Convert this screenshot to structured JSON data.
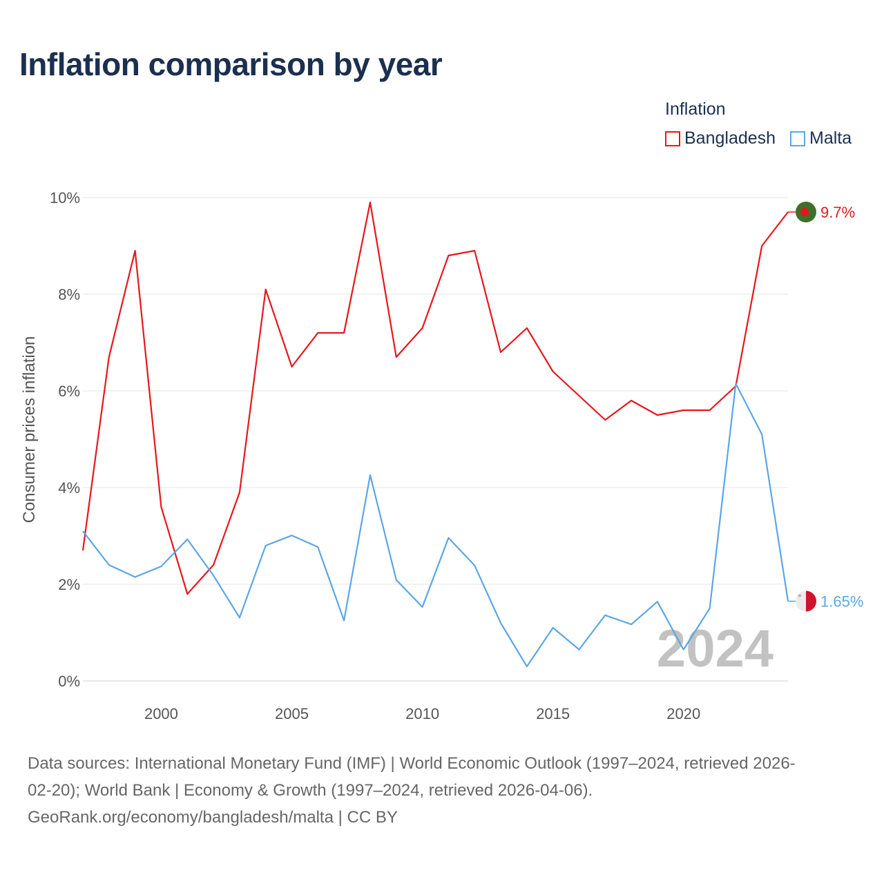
{
  "title": "Inflation comparison by year",
  "legend": {
    "title": "Inflation",
    "items": [
      {
        "name": "Bangladesh",
        "color": "#e8151b"
      },
      {
        "name": "Malta",
        "color": "#5aa6e6"
      }
    ]
  },
  "chart_data": {
    "type": "line",
    "title": "Inflation comparison by year",
    "xlabel": "",
    "ylabel": "Consumer prices inflation",
    "x": [
      1997,
      1998,
      1999,
      2000,
      2001,
      2002,
      2003,
      2004,
      2005,
      2006,
      2007,
      2008,
      2009,
      2010,
      2011,
      2012,
      2013,
      2014,
      2015,
      2016,
      2017,
      2018,
      2019,
      2020,
      2021,
      2022,
      2023,
      2024
    ],
    "xlim": [
      1997,
      2024
    ],
    "ylim": [
      0,
      10
    ],
    "xticks": [
      2000,
      2005,
      2010,
      2015,
      2020
    ],
    "yticks": [
      0,
      2,
      4,
      6,
      8,
      10
    ],
    "ytick_labels": [
      "0%",
      "2%",
      "4%",
      "6%",
      "8%",
      "10%"
    ],
    "grid": true,
    "legend_position": "top-right",
    "series": [
      {
        "name": "Bangladesh",
        "color": "#e8151b",
        "values": [
          2.7,
          6.7,
          8.9,
          3.6,
          1.8,
          2.4,
          3.9,
          8.1,
          6.5,
          7.2,
          7.2,
          9.9,
          6.7,
          7.3,
          8.8,
          8.9,
          6.8,
          7.3,
          6.4,
          5.9,
          5.4,
          5.8,
          5.5,
          5.6,
          5.6,
          6.1,
          9.0,
          9.7
        ],
        "end_label": "9.7%"
      },
      {
        "name": "Malta",
        "color": "#5aa6e6",
        "values": [
          3.1,
          2.4,
          2.15,
          2.37,
          2.93,
          2.18,
          1.31,
          2.8,
          3.01,
          2.77,
          1.25,
          4.26,
          2.09,
          1.53,
          2.96,
          2.39,
          1.2,
          0.3,
          1.1,
          0.65,
          1.36,
          1.17,
          1.64,
          0.65,
          1.5,
          6.15,
          5.1,
          1.65
        ],
        "end_label": "1.65%"
      }
    ],
    "annotation": "2024"
  },
  "source": {
    "line1": "Data sources: International Monetary Fund (IMF) | World Economic Outlook (1997–2024, retrieved 2026-",
    "line2": "02-20); World Bank | Economy & Growth (1997–2024, retrieved 2026-04-06).",
    "line3": "GeoRank.org/economy/bangladesh/malta | CC BY"
  }
}
